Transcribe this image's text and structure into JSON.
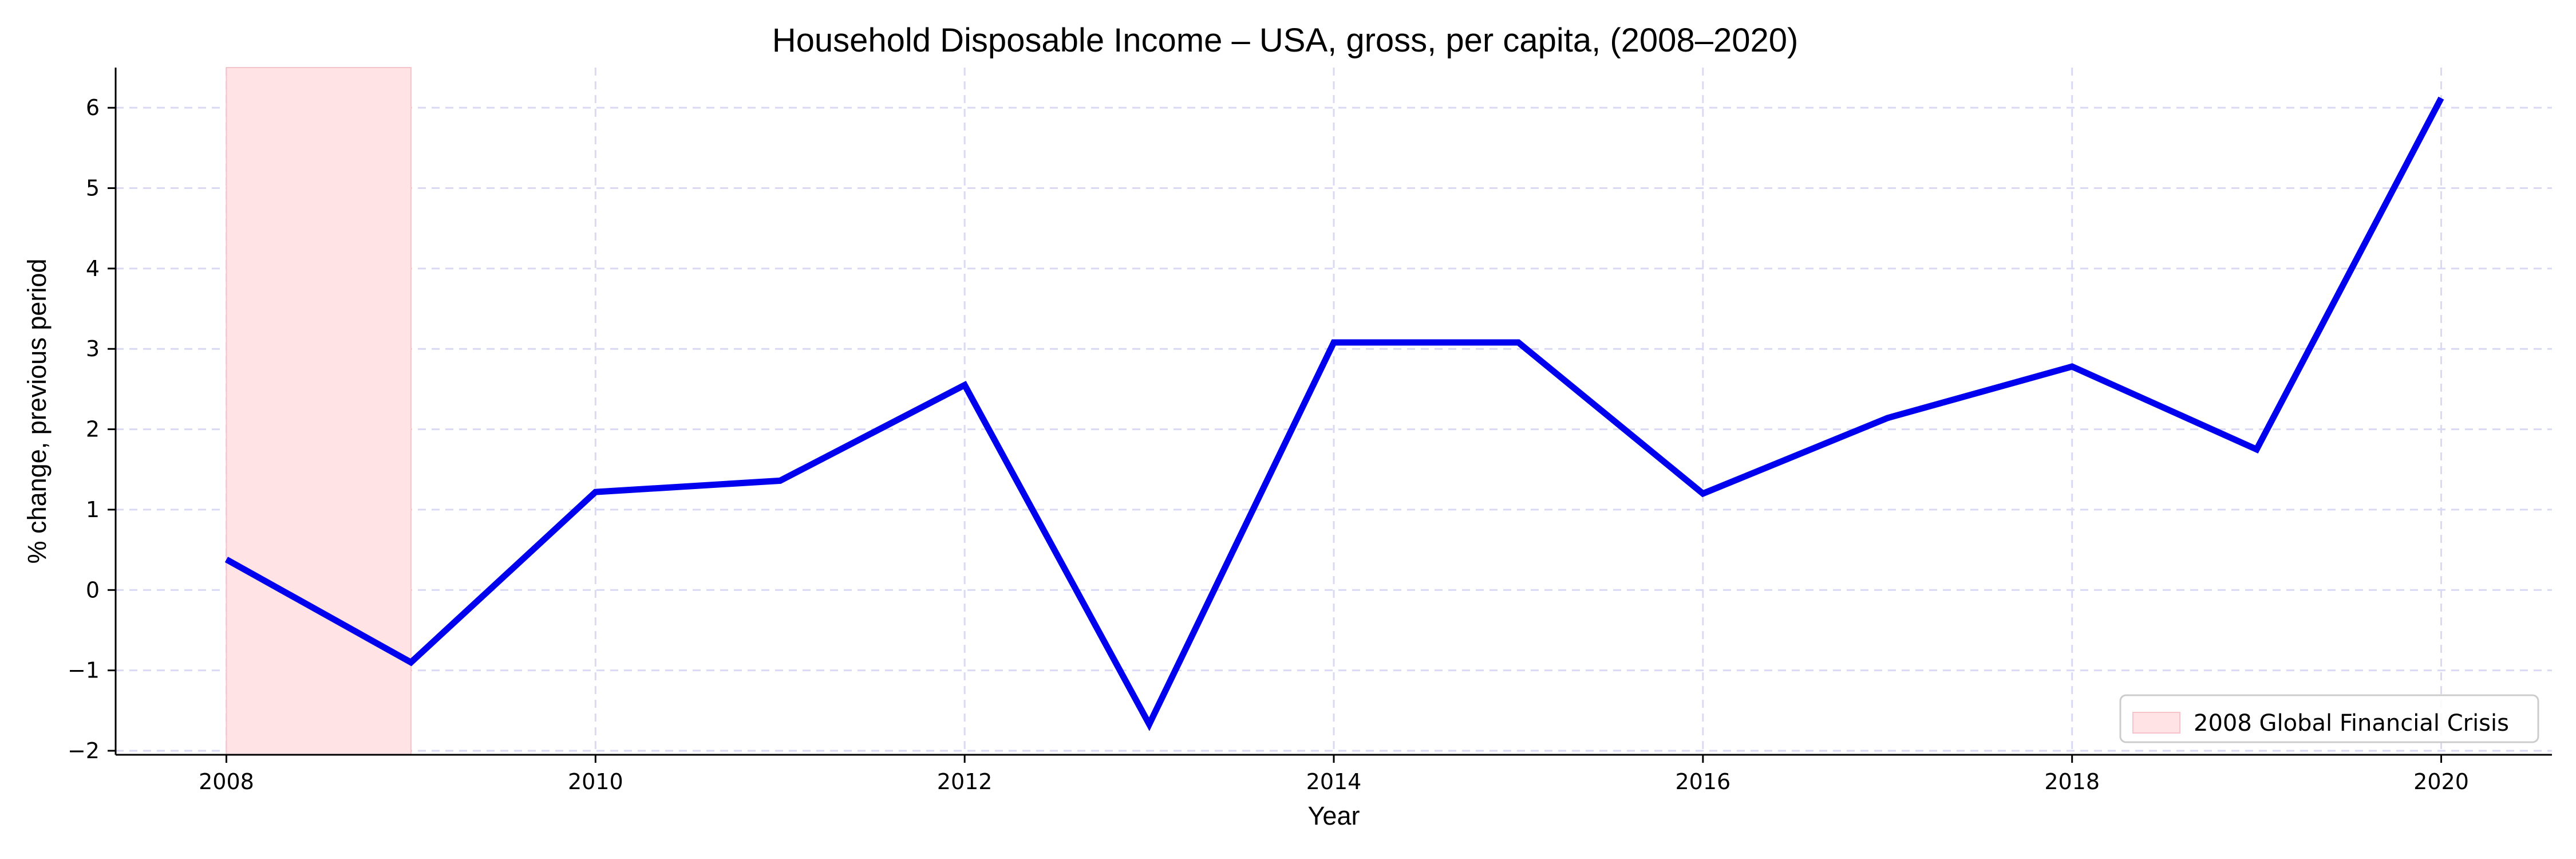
{
  "chart_data": {
    "type": "line",
    "title": "Household Disposable Income – USA, gross, per capita, (2008–2020)",
    "xlabel": "Year",
    "ylabel": "% change, previous period",
    "xlim": [
      2007.4,
      2020.6
    ],
    "ylim": [
      -2.05,
      6.5
    ],
    "xticks": [
      2008,
      2010,
      2012,
      2014,
      2016,
      2018,
      2020
    ],
    "yticks": [
      -2,
      -1,
      0,
      1,
      2,
      3,
      4,
      5,
      6
    ],
    "grid": true,
    "series": [
      {
        "color": "#0000ee",
        "x": [
          2008,
          2009,
          2010,
          2011,
          2012,
          2013,
          2014,
          2015,
          2016,
          2017,
          2018,
          2019,
          2020
        ],
        "y": [
          0.38,
          -0.9,
          1.22,
          1.36,
          2.55,
          -1.67,
          3.08,
          3.08,
          1.2,
          2.14,
          2.78,
          1.75,
          6.12
        ]
      }
    ],
    "shaded_regions": [
      {
        "x_start": 2008,
        "x_end": 2009,
        "color": "#ffe3e5",
        "label": "2008 Global Financial Crisis"
      }
    ],
    "legend": {
      "placement": "bottom-right",
      "entries": [
        "2008 Global Financial Crisis"
      ]
    }
  }
}
